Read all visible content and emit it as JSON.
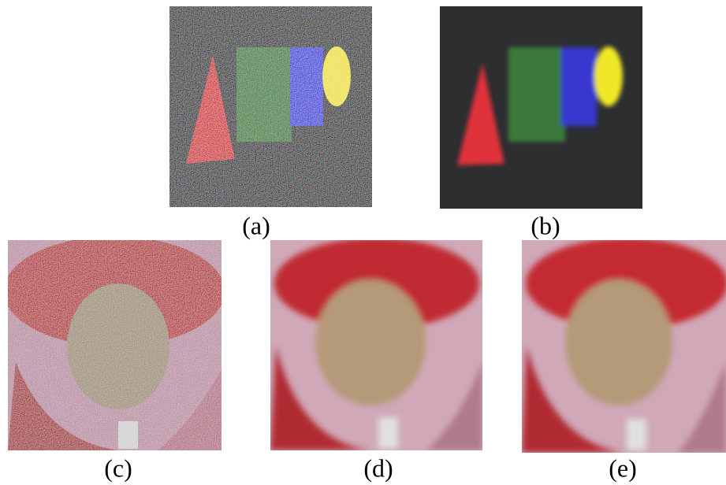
{
  "panels": [
    {
      "caption": "(a)"
    },
    {
      "caption": "(b)"
    },
    {
      "caption": "(c)"
    },
    {
      "caption": "(d)"
    },
    {
      "caption": "(e)"
    }
  ]
}
